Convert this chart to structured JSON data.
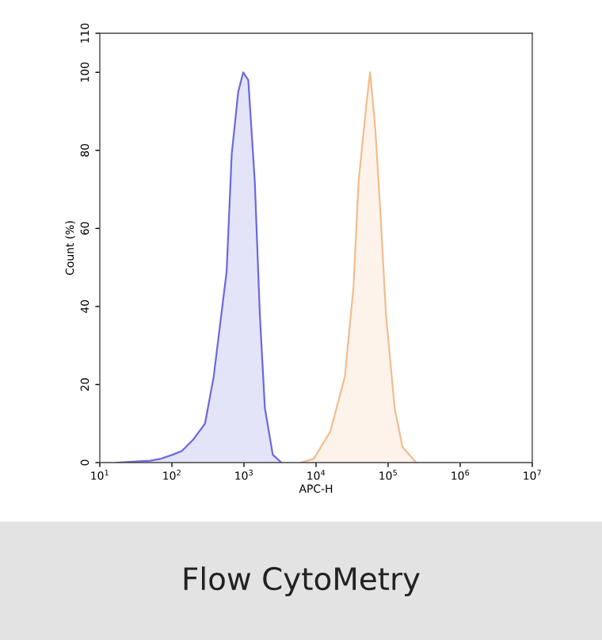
{
  "chart_data": {
    "type": "area",
    "xlabel": "APC-H",
    "ylabel": "Count (%)",
    "log": "x",
    "xlim": [
      10,
      10000000
    ],
    "xticks": [
      {
        "value": 10,
        "label": "10$^{1}$"
      },
      {
        "value": 100,
        "label": "10$^{2}$"
      },
      {
        "value": 1000,
        "label": "10$^{3}$"
      },
      {
        "value": 10000,
        "label": "10$^{4}$"
      },
      {
        "value": 100000,
        "label": "10$^{5}$"
      },
      {
        "value": 1000000,
        "label": "10$^{6}$"
      },
      {
        "value": 10000000,
        "label": "10$^{7}$"
      }
    ],
    "ylim": [
      0,
      110
    ],
    "yticks": [
      0,
      20,
      40,
      60,
      80,
      100,
      110
    ],
    "grid": false,
    "annotations": [
      "Flow CytoMetry"
    ],
    "series": [
      {
        "color": "#6a6ae0",
        "x": [
          17,
          50,
          71,
          102,
          138,
          200,
          288,
          380,
          575,
          676,
          832,
          977,
          1148,
          1413,
          1660,
          1950,
          2510,
          3310
        ],
        "values": [
          0,
          0.5,
          1,
          2,
          3,
          6,
          10,
          22,
          49,
          79,
          95,
          100,
          98,
          72,
          38,
          14,
          2,
          0
        ]
      },
      {
        "color": "#f2bd8e",
        "x": [
          6170,
          9330,
          15800,
          25100,
          33100,
          38900,
          50100,
          56200,
          66100,
          77600,
          93300,
          123000,
          158000,
          245000
        ],
        "values": [
          0,
          1,
          8,
          22,
          45,
          72,
          92,
          100,
          86,
          65,
          38,
          14,
          4,
          0
        ]
      }
    ]
  }
}
